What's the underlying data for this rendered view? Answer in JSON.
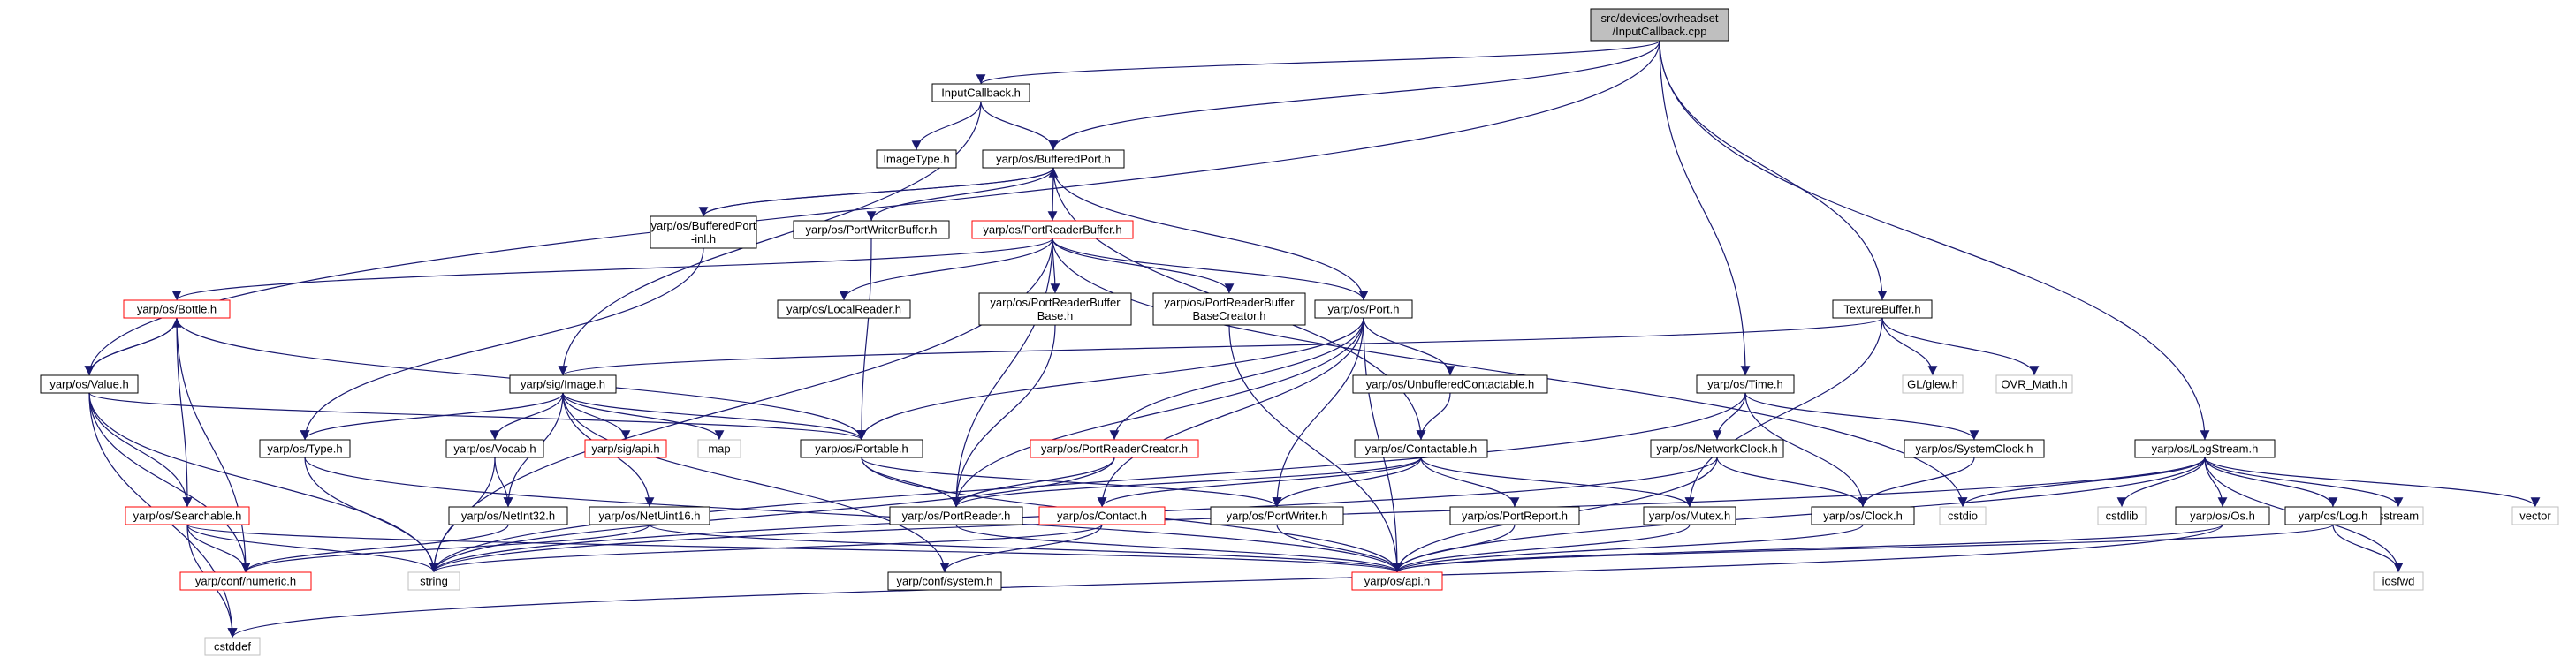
{
  "colors": {
    "edge": "#191970",
    "normal_border": "#000000",
    "incomplete_border": "#ff0000",
    "system_border": "#bfbfbf",
    "root_fill": "#bfbfbf",
    "system_text": "#808080"
  },
  "nodes": [
    {
      "id": "root",
      "lines": [
        "src/devices/ovrheadset",
        "/InputCallback.cpp"
      ],
      "kind": "root"
    },
    {
      "id": "inputcallback",
      "lines": [
        "InputCallback.h"
      ],
      "kind": "normal"
    },
    {
      "id": "imagetype",
      "lines": [
        "ImageType.h"
      ],
      "kind": "normal"
    },
    {
      "id": "bufferedport",
      "lines": [
        "yarp/os/BufferedPort.h"
      ],
      "kind": "normal"
    },
    {
      "id": "bufferedportinl",
      "lines": [
        "yarp/os/BufferedPort",
        "-inl.h"
      ],
      "kind": "normal"
    },
    {
      "id": "portwriterbuffer",
      "lines": [
        "yarp/os/PortWriterBuffer.h"
      ],
      "kind": "normal"
    },
    {
      "id": "portreaderbuffer",
      "lines": [
        "yarp/os/PortReaderBuffer.h"
      ],
      "kind": "incomplete"
    },
    {
      "id": "bottle",
      "lines": [
        "yarp/os/Bottle.h"
      ],
      "kind": "incomplete"
    },
    {
      "id": "localreader",
      "lines": [
        "yarp/os/LocalReader.h"
      ],
      "kind": "normal"
    },
    {
      "id": "prbbase",
      "lines": [
        "yarp/os/PortReaderBuffer",
        "Base.h"
      ],
      "kind": "normal"
    },
    {
      "id": "prbbasecreator",
      "lines": [
        "yarp/os/PortReaderBuffer",
        "BaseCreator.h"
      ],
      "kind": "normal"
    },
    {
      "id": "port",
      "lines": [
        "yarp/os/Port.h"
      ],
      "kind": "normal"
    },
    {
      "id": "texturebuffer",
      "lines": [
        "TextureBuffer.h"
      ],
      "kind": "normal"
    },
    {
      "id": "value",
      "lines": [
        "yarp/os/Value.h"
      ],
      "kind": "normal"
    },
    {
      "id": "image",
      "lines": [
        "yarp/sig/Image.h"
      ],
      "kind": "normal"
    },
    {
      "id": "unbuffered",
      "lines": [
        "yarp/os/UnbufferedContactable.h"
      ],
      "kind": "normal"
    },
    {
      "id": "glew",
      "lines": [
        "GL/glew.h"
      ],
      "kind": "system"
    },
    {
      "id": "ovrmath",
      "lines": [
        "OVR_Math.h"
      ],
      "kind": "system"
    },
    {
      "id": "time",
      "lines": [
        "yarp/os/Time.h"
      ],
      "kind": "normal"
    },
    {
      "id": "type",
      "lines": [
        "yarp/os/Type.h"
      ],
      "kind": "normal"
    },
    {
      "id": "vocab",
      "lines": [
        "yarp/os/Vocab.h"
      ],
      "kind": "normal"
    },
    {
      "id": "sigapi",
      "lines": [
        "yarp/sig/api.h"
      ],
      "kind": "incomplete"
    },
    {
      "id": "map",
      "lines": [
        "map"
      ],
      "kind": "system"
    },
    {
      "id": "portable",
      "lines": [
        "yarp/os/Portable.h"
      ],
      "kind": "normal"
    },
    {
      "id": "portreadercreator",
      "lines": [
        "yarp/os/PortReaderCreator.h"
      ],
      "kind": "incomplete"
    },
    {
      "id": "contactable",
      "lines": [
        "yarp/os/Contactable.h"
      ],
      "kind": "normal"
    },
    {
      "id": "networkclock",
      "lines": [
        "yarp/os/NetworkClock.h"
      ],
      "kind": "normal"
    },
    {
      "id": "systemclock",
      "lines": [
        "yarp/os/SystemClock.h"
      ],
      "kind": "normal"
    },
    {
      "id": "logstream",
      "lines": [
        "yarp/os/LogStream.h"
      ],
      "kind": "normal"
    },
    {
      "id": "cstdio",
      "lines": [
        "cstdio"
      ],
      "kind": "system"
    },
    {
      "id": "cstdlib",
      "lines": [
        "cstdlib"
      ],
      "kind": "system"
    },
    {
      "id": "sstream",
      "lines": [
        "sstream"
      ],
      "kind": "system"
    },
    {
      "id": "vector",
      "lines": [
        "vector"
      ],
      "kind": "system"
    },
    {
      "id": "searchable",
      "lines": [
        "yarp/os/Searchable.h"
      ],
      "kind": "incomplete"
    },
    {
      "id": "netint32",
      "lines": [
        "yarp/os/NetInt32.h"
      ],
      "kind": "normal"
    },
    {
      "id": "netuint16",
      "lines": [
        "yarp/os/NetUint16.h"
      ],
      "kind": "normal"
    },
    {
      "id": "portreader",
      "lines": [
        "yarp/os/PortReader.h"
      ],
      "kind": "normal"
    },
    {
      "id": "contact",
      "lines": [
        "yarp/os/Contact.h"
      ],
      "kind": "incomplete"
    },
    {
      "id": "portwriter",
      "lines": [
        "yarp/os/PortWriter.h"
      ],
      "kind": "normal"
    },
    {
      "id": "portreport",
      "lines": [
        "yarp/os/PortReport.h"
      ],
      "kind": "normal"
    },
    {
      "id": "mutex",
      "lines": [
        "yarp/os/Mutex.h"
      ],
      "kind": "normal"
    },
    {
      "id": "clock",
      "lines": [
        "yarp/os/Clock.h"
      ],
      "kind": "normal"
    },
    {
      "id": "os",
      "lines": [
        "yarp/os/Os.h"
      ],
      "kind": "normal"
    },
    {
      "id": "log",
      "lines": [
        "yarp/os/Log.h"
      ],
      "kind": "normal"
    },
    {
      "id": "numeric",
      "lines": [
        "yarp/conf/numeric.h"
      ],
      "kind": "incomplete"
    },
    {
      "id": "string",
      "lines": [
        "string"
      ],
      "kind": "system"
    },
    {
      "id": "system",
      "lines": [
        "yarp/conf/system.h"
      ],
      "kind": "normal"
    },
    {
      "id": "api",
      "lines": [
        "yarp/os/api.h"
      ],
      "kind": "incomplete"
    },
    {
      "id": "iosfwd",
      "lines": [
        "iosfwd"
      ],
      "kind": "system"
    },
    {
      "id": "cstddef",
      "lines": [
        "cstddef"
      ],
      "kind": "system"
    }
  ],
  "edges": [
    [
      "root",
      "inputcallback"
    ],
    [
      "root",
      "bufferedport"
    ],
    [
      "root",
      "value"
    ],
    [
      "root",
      "time"
    ],
    [
      "root",
      "texturebuffer"
    ],
    [
      "root",
      "logstream"
    ],
    [
      "inputcallback",
      "imagetype"
    ],
    [
      "inputcallback",
      "bufferedport"
    ],
    [
      "inputcallback",
      "image"
    ],
    [
      "bufferedport",
      "bufferedportinl"
    ],
    [
      "bufferedport",
      "portwriterbuffer"
    ],
    [
      "bufferedport",
      "portreaderbuffer"
    ],
    [
      "bufferedport",
      "port"
    ],
    [
      "bufferedport",
      "contactable"
    ],
    [
      "bufferedportinl",
      "bufferedport"
    ],
    [
      "bufferedportinl",
      "type"
    ],
    [
      "portwriterbuffer",
      "portable"
    ],
    [
      "portreaderbuffer",
      "bottle"
    ],
    [
      "portreaderbuffer",
      "localreader"
    ],
    [
      "portreaderbuffer",
      "prbbase"
    ],
    [
      "portreaderbuffer",
      "prbbasecreator"
    ],
    [
      "portreaderbuffer",
      "port"
    ],
    [
      "portreaderbuffer",
      "portreader"
    ],
    [
      "portreaderbuffer",
      "string"
    ],
    [
      "portreaderbuffer",
      "cstdio"
    ],
    [
      "bottle",
      "value"
    ],
    [
      "bottle",
      "searchable"
    ],
    [
      "bottle",
      "portable"
    ],
    [
      "bottle",
      "numeric"
    ],
    [
      "value",
      "bottle"
    ],
    [
      "value",
      "searchable"
    ],
    [
      "value",
      "portable"
    ],
    [
      "value",
      "numeric"
    ],
    [
      "value",
      "string"
    ],
    [
      "value",
      "cstddef"
    ],
    [
      "prbbase",
      "portreader"
    ],
    [
      "prbbasecreator",
      "api"
    ],
    [
      "port",
      "unbuffered"
    ],
    [
      "port",
      "portable"
    ],
    [
      "port",
      "portreadercreator"
    ],
    [
      "port",
      "portreader"
    ],
    [
      "port",
      "portwriter"
    ],
    [
      "port",
      "contact"
    ],
    [
      "port",
      "api"
    ],
    [
      "texturebuffer",
      "glew"
    ],
    [
      "texturebuffer",
      "ovrmath"
    ],
    [
      "texturebuffer",
      "image"
    ],
    [
      "texturebuffer",
      "mutex"
    ],
    [
      "image",
      "type"
    ],
    [
      "image",
      "vocab"
    ],
    [
      "image",
      "sigapi"
    ],
    [
      "image",
      "map"
    ],
    [
      "image",
      "portable"
    ],
    [
      "image",
      "netint32"
    ],
    [
      "image",
      "netuint16"
    ],
    [
      "image",
      "system"
    ],
    [
      "unbuffered",
      "contactable"
    ],
    [
      "time",
      "networkclock"
    ],
    [
      "time",
      "systemclock"
    ],
    [
      "time",
      "clock"
    ],
    [
      "time",
      "string"
    ],
    [
      "type",
      "string"
    ],
    [
      "type",
      "api"
    ],
    [
      "vocab",
      "netint32"
    ],
    [
      "vocab",
      "string"
    ],
    [
      "portable",
      "portreader"
    ],
    [
      "portable",
      "portwriter"
    ],
    [
      "portable",
      "api"
    ],
    [
      "portreadercreator",
      "portreader"
    ],
    [
      "portreadercreator",
      "string"
    ],
    [
      "contactable",
      "portreader"
    ],
    [
      "contactable",
      "contact"
    ],
    [
      "contactable",
      "portwriter"
    ],
    [
      "contactable",
      "portreport"
    ],
    [
      "contactable",
      "mutex"
    ],
    [
      "networkclock",
      "clock"
    ],
    [
      "networkclock",
      "string"
    ],
    [
      "networkclock",
      "api"
    ],
    [
      "systemclock",
      "clock"
    ],
    [
      "logstream",
      "cstdio"
    ],
    [
      "logstream",
      "cstdlib"
    ],
    [
      "logstream",
      "os"
    ],
    [
      "logstream",
      "log"
    ],
    [
      "logstream",
      "sstream"
    ],
    [
      "logstream",
      "vector"
    ],
    [
      "logstream",
      "iosfwd"
    ],
    [
      "logstream",
      "string"
    ],
    [
      "logstream",
      "api"
    ],
    [
      "searchable",
      "numeric"
    ],
    [
      "searchable",
      "string"
    ],
    [
      "searchable",
      "cstddef"
    ],
    [
      "searchable",
      "api"
    ],
    [
      "netint32",
      "numeric"
    ],
    [
      "netuint16",
      "numeric"
    ],
    [
      "netuint16",
      "api"
    ],
    [
      "portreader",
      "api"
    ],
    [
      "contact",
      "system"
    ],
    [
      "contact",
      "string"
    ],
    [
      "portwriter",
      "api"
    ],
    [
      "portreport",
      "api"
    ],
    [
      "mutex",
      "api"
    ],
    [
      "clock",
      "api"
    ],
    [
      "os",
      "api"
    ],
    [
      "os",
      "cstddef"
    ],
    [
      "log",
      "api"
    ],
    [
      "log",
      "iosfwd"
    ]
  ]
}
